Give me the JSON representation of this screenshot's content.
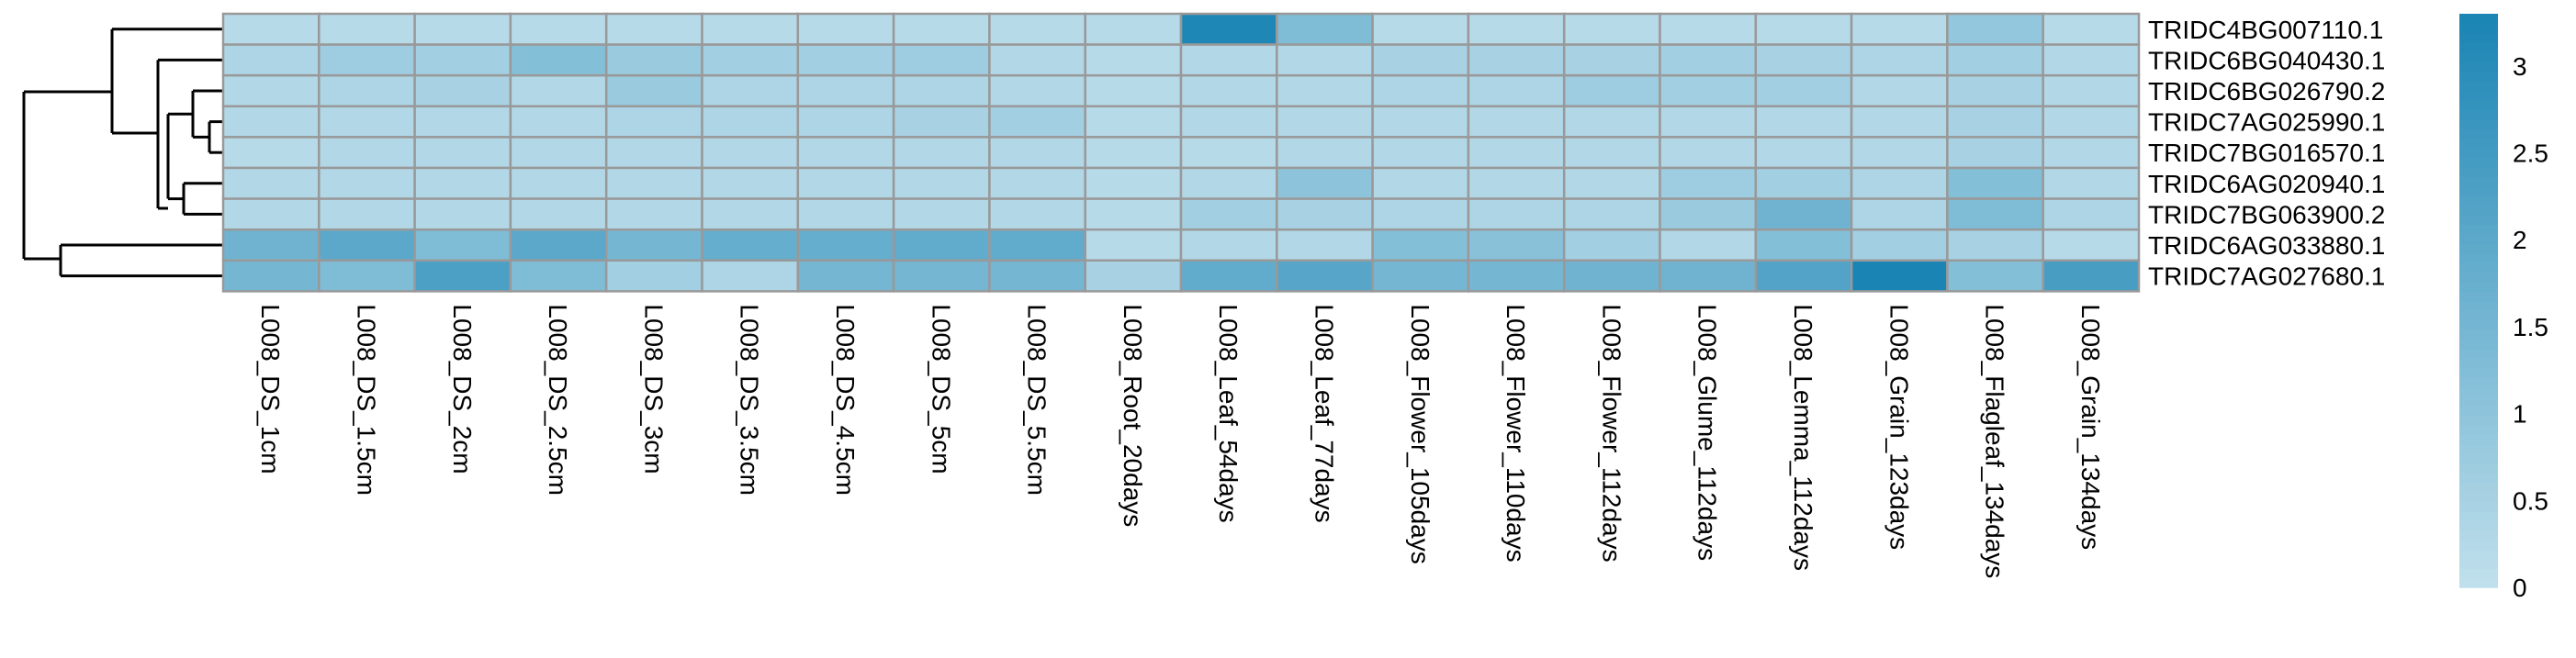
{
  "chart_data": {
    "type": "heatmap",
    "rows": [
      "TRIDC4BG007110.1",
      "TRIDC6BG040430.1",
      "TRIDC6BG026790.2",
      "TRIDC7AG025990.1",
      "TRIDC7BG016570.1",
      "TRIDC6AG020940.1",
      "TRIDC7BG063900.2",
      "TRIDC6AG033880.1",
      "TRIDC7AG027680.1"
    ],
    "columns": [
      "L008_DS_1cm",
      "L008_DS_1.5cm",
      "L008_DS_2cm",
      "L008_DS_2.5cm",
      "L008_DS_3cm",
      "L008_DS_3.5cm",
      "L008_DS_4.5cm",
      "L008_DS_5cm",
      "L008_DS_5.5cm",
      "L008_Root_20days",
      "L008_Leaf_54days",
      "L008_Leaf_77days",
      "L008_Flower_105days",
      "L008_Flower_110days",
      "L008_Flower_112days",
      "L008_Glume_112days",
      "L008_Lemma_112days",
      "L008_Grain_123days",
      "L008_Flagleaf_134days",
      "L008_Grain_134days"
    ],
    "values": [
      [
        0.2,
        0.2,
        0.2,
        0.2,
        0.2,
        0.2,
        0.2,
        0.2,
        0.2,
        0.2,
        3.2,
        1.3,
        0.2,
        0.2,
        0.2,
        0.2,
        0.2,
        0.2,
        0.9,
        0.2
      ],
      [
        0.4,
        0.7,
        0.6,
        1.2,
        0.8,
        0.6,
        0.6,
        0.7,
        0.3,
        0.2,
        0.3,
        0.3,
        0.5,
        0.5,
        0.5,
        0.6,
        0.5,
        0.4,
        0.6,
        0.3
      ],
      [
        0.3,
        0.4,
        0.5,
        0.3,
        0.8,
        0.4,
        0.4,
        0.4,
        0.3,
        0.2,
        0.3,
        0.3,
        0.4,
        0.4,
        0.7,
        0.6,
        0.6,
        0.3,
        0.5,
        0.3
      ],
      [
        0.3,
        0.3,
        0.3,
        0.3,
        0.4,
        0.4,
        0.4,
        0.5,
        0.6,
        0.2,
        0.3,
        0.3,
        0.3,
        0.3,
        0.3,
        0.3,
        0.3,
        0.3,
        0.5,
        0.3
      ],
      [
        0.2,
        0.3,
        0.3,
        0.3,
        0.3,
        0.3,
        0.3,
        0.3,
        0.3,
        0.2,
        0.2,
        0.3,
        0.3,
        0.3,
        0.3,
        0.3,
        0.3,
        0.3,
        0.5,
        0.3
      ],
      [
        0.3,
        0.3,
        0.3,
        0.3,
        0.3,
        0.3,
        0.3,
        0.3,
        0.3,
        0.2,
        0.3,
        1.0,
        0.3,
        0.3,
        0.3,
        0.7,
        0.6,
        0.4,
        1.2,
        0.3
      ],
      [
        0.3,
        0.3,
        0.3,
        0.3,
        0.3,
        0.3,
        0.3,
        0.3,
        0.3,
        0.2,
        0.6,
        0.5,
        0.4,
        0.4,
        0.4,
        0.8,
        1.6,
        0.4,
        1.3,
        0.4
      ],
      [
        1.6,
        2.0,
        1.3,
        2.0,
        1.5,
        1.8,
        1.8,
        1.9,
        1.9,
        0.2,
        0.3,
        0.3,
        1.2,
        1.1,
        0.6,
        0.3,
        1.2,
        0.6,
        0.5,
        0.2
      ],
      [
        1.5,
        1.3,
        2.3,
        1.3,
        0.6,
        0.4,
        1.5,
        1.5,
        1.5,
        0.5,
        1.9,
        2.1,
        1.5,
        1.5,
        1.6,
        1.6,
        2.2,
        3.3,
        1.2,
        2.4
      ]
    ],
    "colorscale": {
      "min_color": "#c1e0ec",
      "max_color": "#1a84b4",
      "border_color": "#999999"
    },
    "legend": {
      "placement": "right",
      "range": [
        0,
        3.3
      ],
      "ticks": [
        "0",
        "0.5",
        "1",
        "1.5",
        "2",
        "2.5",
        "3"
      ]
    },
    "row_dendrogram": true,
    "title": "",
    "xlabel": "",
    "ylabel": ""
  }
}
